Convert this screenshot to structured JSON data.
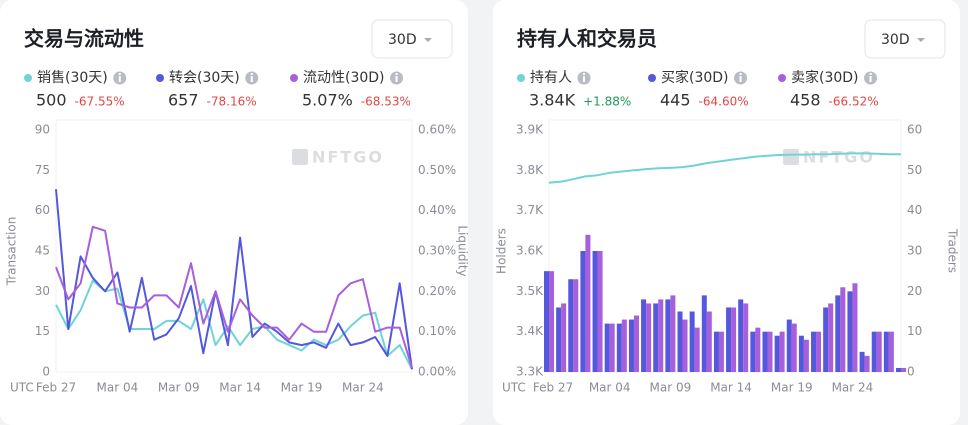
{
  "chart_data": [
    {
      "type": "line",
      "title": "交易与流动性",
      "dropdown": "30D",
      "watermark": "NFTGO",
      "x_prefix": "UTC",
      "y_label": "Transaction",
      "y2_label": "Liquidity",
      "categories": [
        "Feb 27",
        null,
        null,
        null,
        null,
        "Mar 04",
        null,
        null,
        null,
        null,
        "Mar 09",
        null,
        null,
        null,
        null,
        "Mar 14",
        null,
        null,
        null,
        null,
        "Mar 19",
        null,
        null,
        null,
        null,
        "Mar 24",
        null,
        null,
        null,
        null
      ],
      "ylim": [
        0,
        90
      ],
      "yticks": [
        0,
        15,
        30,
        45,
        60,
        75,
        90
      ],
      "y2lim": [
        0,
        0.6
      ],
      "y2ticks": [
        {
          "value": 0,
          "label": "0.00%"
        },
        {
          "value": 0.1,
          "label": "0.10%"
        },
        {
          "value": 0.2,
          "label": "0.20%"
        },
        {
          "value": 0.3,
          "label": "0.30%"
        },
        {
          "value": 0.4,
          "label": "0.40%"
        },
        {
          "value": 0.5,
          "label": "0.50%"
        },
        {
          "value": 0.6,
          "label": "0.60%"
        }
      ],
      "series": [
        {
          "name": "销售(30天)",
          "summary": "500",
          "change": "-67.55%",
          "color": "#6fd3d8",
          "values": [
            25,
            16,
            23,
            34,
            30,
            31,
            16,
            16,
            16,
            19,
            19,
            16,
            27,
            10,
            17,
            10,
            16,
            17,
            12,
            10,
            8,
            12,
            10,
            12,
            17,
            21,
            22,
            6,
            10,
            1
          ]
        },
        {
          "name": "转会(30天)",
          "summary": "657",
          "change": "-78.16%",
          "color": "#5358dc",
          "values": [
            68,
            16,
            43,
            35,
            30,
            37,
            15,
            35,
            12,
            14,
            20,
            32,
            7,
            30,
            10,
            50,
            13,
            18,
            15,
            11,
            10,
            11,
            9,
            18,
            10,
            11,
            13,
            6,
            33,
            1
          ]
        },
        {
          "name": "流动性(30D)",
          "summary": "5.07%",
          "change": "-68.53%",
          "color": "#a85fdc",
          "axis": "y2",
          "values": [
            0.26,
            0.18,
            0.22,
            0.36,
            0.35,
            0.17,
            0.16,
            0.16,
            0.19,
            0.19,
            0.16,
            0.27,
            0.12,
            0.2,
            0.1,
            0.18,
            0.14,
            0.11,
            0.11,
            0.08,
            0.12,
            0.1,
            0.1,
            0.19,
            0.22,
            0.23,
            0.1,
            0.11,
            0.11,
            0.01
          ]
        }
      ]
    },
    {
      "type": "bar",
      "title": "持有人和交易员",
      "dropdown": "30D",
      "watermark": "NFTGO",
      "x_prefix": "UTC",
      "y_label": "Holders",
      "y2_label": "Traders",
      "categories": [
        "Feb 27",
        null,
        null,
        null,
        null,
        "Mar 04",
        null,
        null,
        null,
        null,
        "Mar 09",
        null,
        null,
        null,
        null,
        "Mar 14",
        null,
        null,
        null,
        null,
        "Mar 19",
        null,
        null,
        null,
        null,
        "Mar 24",
        null,
        null,
        null,
        null
      ],
      "ylim": [
        3300,
        3900
      ],
      "yticks": [
        {
          "value": 3300,
          "label": "3.3K"
        },
        {
          "value": 3400,
          "label": "3.4K"
        },
        {
          "value": 3500,
          "label": "3.5K"
        },
        {
          "value": 3600,
          "label": "3.6K"
        },
        {
          "value": 3700,
          "label": "3.7K"
        },
        {
          "value": 3800,
          "label": "3.8K"
        },
        {
          "value": 3900,
          "label": "3.9K"
        }
      ],
      "y2lim": [
        0,
        60
      ],
      "y2ticks": [
        0,
        10,
        20,
        30,
        40,
        50,
        60
      ],
      "series": [
        {
          "name": "持有人",
          "summary": "3.84K",
          "change": "+1.88%",
          "color": "#6fd3d8",
          "type": "line",
          "values": [
            3769,
            3772,
            3778,
            3785,
            3788,
            3794,
            3797,
            3800,
            3803,
            3805,
            3806,
            3808,
            3812,
            3818,
            3822,
            3826,
            3830,
            3834,
            3836,
            3838,
            3839,
            3839,
            3840,
            3840,
            3841,
            3842,
            3842,
            3841,
            3840,
            3840
          ]
        },
        {
          "name": "买家(30D)",
          "summary": "445",
          "change": "-64.60%",
          "color": "#5358dc",
          "type": "bar",
          "axis": "y2",
          "values": [
            25,
            16,
            23,
            30,
            30,
            12,
            12,
            13,
            18,
            17,
            18,
            15,
            15,
            19,
            10,
            16,
            18,
            10,
            10,
            9,
            13,
            9,
            10,
            16,
            19,
            20,
            5,
            10,
            10,
            1
          ]
        },
        {
          "name": "卖家(30D)",
          "summary": "458",
          "change": "-66.52%",
          "color": "#a85fdc",
          "type": "bar",
          "axis": "y2",
          "values": [
            25,
            17,
            23,
            34,
            30,
            12,
            13,
            14,
            17,
            18,
            19,
            13,
            11,
            15,
            10,
            16,
            17,
            11,
            10,
            10,
            12,
            8,
            10,
            17,
            21,
            22,
            4,
            10,
            10,
            1
          ]
        }
      ]
    }
  ]
}
